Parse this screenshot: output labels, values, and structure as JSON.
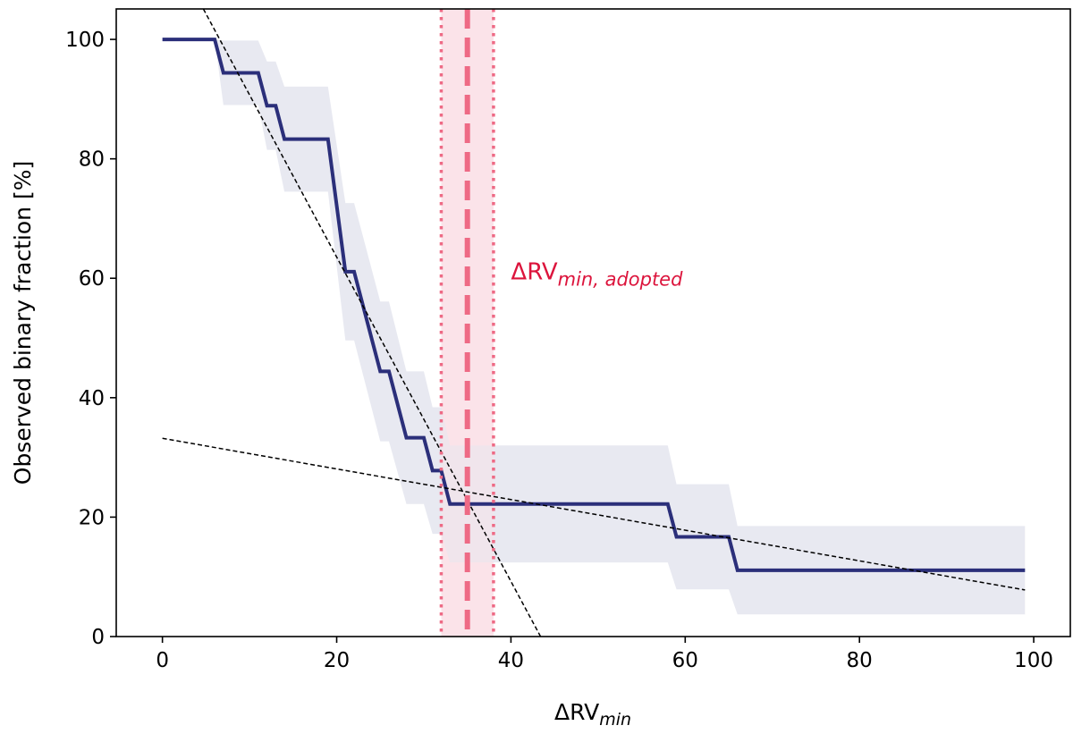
{
  "chart_data": {
    "type": "line",
    "xlabel": {
      "main": "ΔRV",
      "sub": "min"
    },
    "ylabel": "Observed binary fraction [%]",
    "xlim": [
      -5.3,
      104.2
    ],
    "ylim": [
      0,
      105.1
    ],
    "xticks": [
      0,
      20,
      40,
      60,
      80,
      100
    ],
    "yticks": [
      0,
      20,
      40,
      60,
      80,
      100
    ],
    "grid": false,
    "series": [
      {
        "x": [
          0,
          6,
          7,
          11,
          12,
          13,
          14,
          19,
          21,
          22,
          25,
          26,
          28,
          30,
          31,
          32,
          33,
          58,
          59,
          65,
          66,
          99
        ],
        "y": [
          100,
          100,
          94.4,
          94.4,
          88.9,
          88.9,
          83.3,
          83.3,
          61.1,
          61.1,
          44.4,
          44.4,
          33.3,
          33.3,
          27.8,
          27.8,
          22.2,
          22.2,
          16.7,
          16.7,
          11.1,
          11.1
        ],
        "y_upper": [
          100,
          100,
          99.8,
          99.8,
          96.3,
          96.3,
          92.1,
          92.1,
          72.6,
          72.6,
          56.1,
          56.1,
          44.4,
          44.4,
          38.4,
          38.4,
          32.0,
          32.0,
          25.5,
          25.5,
          18.5,
          18.5
        ],
        "y_lower": [
          100,
          100,
          89.0,
          89.0,
          81.5,
          81.5,
          74.5,
          74.5,
          49.6,
          49.6,
          32.7,
          32.7,
          22.2,
          22.2,
          17.2,
          17.2,
          12.4,
          12.4,
          7.9,
          7.9,
          3.7,
          3.7
        ],
        "color": "#2b2f7a",
        "band_color": "#e6e7f0"
      }
    ],
    "fit_lines": [
      {
        "x": [
          4.7,
          43.4
        ],
        "y": [
          105.1,
          0
        ],
        "color": "#000000",
        "style": "dashed"
      },
      {
        "x": [
          0,
          99
        ],
        "y": [
          33.2,
          7.8
        ],
        "color": "#000000",
        "style": "dashed"
      }
    ],
    "adopted": {
      "value": 35,
      "range": [
        32,
        38
      ],
      "color": "#ee6a85",
      "span_color": "#fbe3e9"
    },
    "annotation": {
      "main": "ΔRV",
      "sub": "min, adopted",
      "x": 40,
      "y": 61,
      "color": "#dc143c"
    }
  }
}
